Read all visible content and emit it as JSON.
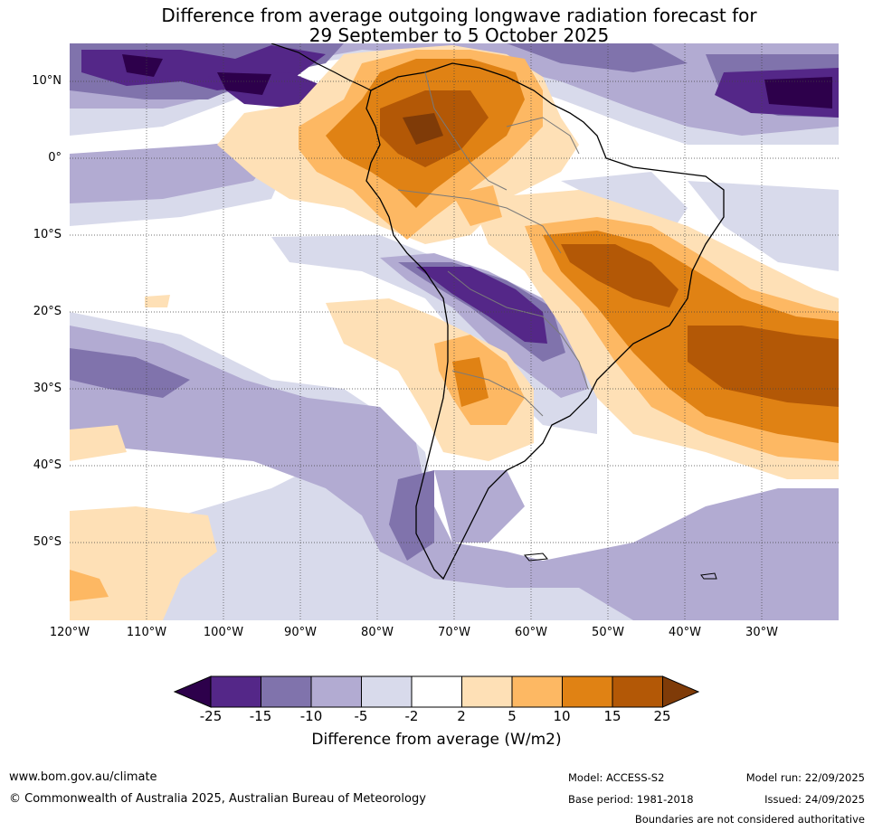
{
  "title": {
    "line1": "Difference from average outgoing longwave radiation forecast for",
    "line2": "29 September to 5 October 2025"
  },
  "map": {
    "lat_labels": [
      "10°N",
      "0°",
      "10°S",
      "20°S",
      "30°S",
      "40°S",
      "50°S"
    ],
    "lon_labels": [
      "120°W",
      "110°W",
      "100°W",
      "90°W",
      "80°W",
      "70°W",
      "60°W",
      "50°W",
      "40°W",
      "30°W"
    ]
  },
  "colorbar": {
    "title": "Difference from average (W/m2)",
    "ticks": [
      "-25",
      "-15",
      "-10",
      "-5",
      "-2",
      "2",
      "5",
      "10",
      "15",
      "25"
    ],
    "colors": [
      "#2d004b",
      "#542788",
      "#8073ac",
      "#b2abd2",
      "#d8daeb",
      "#ffffff",
      "#fee0b6",
      "#fdb863",
      "#e08214",
      "#b35806",
      "#7f3b08"
    ]
  },
  "footer": {
    "website": "www.bom.gov.au/climate",
    "copyright": "© Commonwealth of Australia 2025, Australian Bureau of Meteorology",
    "model": "Model: ACCESS-S2",
    "base_period": "Base period: 1981-2018",
    "model_run": "Model run: 22/09/2025",
    "issued": "Issued: 24/09/2025",
    "disclaimer": "Boundaries are not considered authoritative"
  }
}
